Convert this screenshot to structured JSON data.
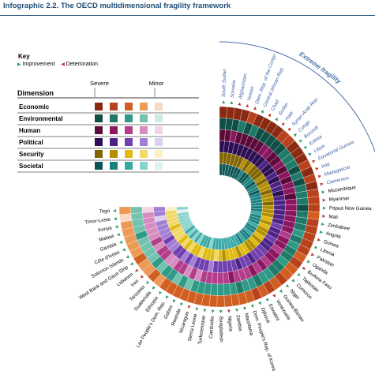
{
  "header": {
    "title": "Infographic 2.2. The OECD multidimensional fragility framework"
  },
  "key": {
    "title": "Key",
    "improvement": "Improvement",
    "deterioration": "Deterioration",
    "improvement_color": "#2e9e6b",
    "deterioration_color": "#c0392b"
  },
  "legend": {
    "dimension_header": "Dimension",
    "severe_label": "Severe",
    "minor_label": "Minor",
    "dimensions": [
      {
        "name": "Economic",
        "colors": [
          "#8b2a12",
          "#b8421c",
          "#d25f22",
          "#ec9a55",
          "#f9d9c1"
        ]
      },
      {
        "name": "Environmental",
        "colors": [
          "#0f4f46",
          "#1f7a69",
          "#2f9a86",
          "#73c2ae",
          "#cdebe2"
        ]
      },
      {
        "name": "Human",
        "colors": [
          "#5c0a3a",
          "#8a1760",
          "#b33d8a",
          "#d78cc0",
          "#f2d6e8"
        ]
      },
      {
        "name": "Political",
        "colors": [
          "#2c0f55",
          "#4d2386",
          "#7040b0",
          "#a27fd4",
          "#ddd0ef"
        ]
      },
      {
        "name": "Security",
        "colors": [
          "#806500",
          "#b38f00",
          "#e0ba10",
          "#f2d869",
          "#fbf1c2"
        ]
      },
      {
        "name": "Societal",
        "colors": [
          "#0d5454",
          "#1c8080",
          "#38a8a5",
          "#8ad3cd",
          "#dcf2ef"
        ]
      }
    ]
  },
  "extreme_fragility_label": "Extreme fragility",
  "chart_data": {
    "type": "radial heatmap",
    "title": "The OECD multidimensional fragility framework",
    "scale": "1 = severe, 5 = minor",
    "rings": [
      "Societal",
      "Security",
      "Political",
      "Human",
      "Environmental",
      "Economic"
    ],
    "countries": [
      {
        "name": "South Sudan",
        "extreme": true,
        "trend": "improvement",
        "scores": [
          1,
          1,
          1,
          1,
          1,
          1
        ]
      },
      {
        "name": "Somalia",
        "extreme": true,
        "trend": "improvement",
        "scores": [
          1,
          1,
          1,
          1,
          1,
          1
        ]
      },
      {
        "name": "Afghanistan",
        "extreme": true,
        "trend": "deterioration",
        "scores": [
          1,
          1,
          1,
          2,
          1,
          1
        ]
      },
      {
        "name": "Yemen",
        "extreme": true,
        "trend": "deterioration",
        "scores": [
          1,
          1,
          1,
          1,
          2,
          1
        ]
      },
      {
        "name": "Dem. Rep. of the Congo",
        "extreme": true,
        "trend": "deterioration",
        "scores": [
          1,
          1,
          1,
          1,
          1,
          2
        ]
      },
      {
        "name": "Central African Rep.",
        "extreme": true,
        "trend": "improvement",
        "scores": [
          1,
          1,
          1,
          1,
          2,
          1
        ]
      },
      {
        "name": "Chad",
        "extreme": true,
        "trend": "deterioration",
        "scores": [
          1,
          2,
          1,
          1,
          1,
          1
        ]
      },
      {
        "name": "Sudan",
        "extreme": true,
        "trend": "improvement",
        "scores": [
          2,
          1,
          1,
          1,
          1,
          1
        ]
      },
      {
        "name": "Haiti",
        "extreme": true,
        "trend": "deterioration",
        "scores": [
          1,
          2,
          1,
          2,
          1,
          1
        ]
      },
      {
        "name": "Syrian Arab Rep.",
        "extreme": true,
        "trend": "deterioration",
        "scores": [
          1,
          1,
          1,
          2,
          1,
          2
        ]
      },
      {
        "name": "Congo",
        "extreme": true,
        "trend": "improvement",
        "scores": [
          2,
          1,
          2,
          1,
          1,
          2
        ]
      },
      {
        "name": "Burundi",
        "extreme": true,
        "trend": "improvement",
        "scores": [
          2,
          1,
          1,
          1,
          2,
          1
        ]
      },
      {
        "name": "Eritrea",
        "extreme": true,
        "trend": "improvement",
        "scores": [
          1,
          2,
          1,
          2,
          2,
          1
        ]
      },
      {
        "name": "Libya",
        "extreme": true,
        "trend": "improvement",
        "scores": [
          2,
          1,
          2,
          1,
          2,
          1
        ]
      },
      {
        "name": "Equatorial Guinea",
        "extreme": true,
        "trend": "deterioration",
        "scores": [
          2,
          2,
          1,
          2,
          1,
          2
        ]
      },
      {
        "name": "Iraq",
        "extreme": true,
        "trend": "deterioration",
        "scores": [
          1,
          2,
          2,
          1,
          2,
          1
        ]
      },
      {
        "name": "Madagascar",
        "extreme": true,
        "trend": "deterioration",
        "scores": [
          2,
          1,
          2,
          2,
          1,
          2
        ]
      },
      {
        "name": "Cameroon",
        "extreme": true,
        "trend": "deterioration",
        "scores": [
          2,
          2,
          1,
          2,
          2,
          1
        ]
      },
      {
        "name": "Mozambique",
        "extreme": false,
        "trend": "improvement",
        "scores": [
          2,
          2,
          2,
          1,
          2,
          2
        ]
      },
      {
        "name": "Myanmar",
        "extreme": false,
        "trend": "deterioration",
        "scores": [
          2,
          1,
          2,
          2,
          2,
          2
        ]
      },
      {
        "name": "Papua New Guinea",
        "extreme": false,
        "trend": "improvement",
        "scores": [
          2,
          2,
          2,
          2,
          1,
          2
        ]
      },
      {
        "name": "Mali",
        "extreme": false,
        "trend": "deterioration",
        "scores": [
          2,
          2,
          2,
          2,
          2,
          3
        ]
      },
      {
        "name": "Zimbabwe",
        "extreme": false,
        "trend": "improvement",
        "scores": [
          3,
          2,
          2,
          2,
          2,
          2
        ]
      },
      {
        "name": "Angola",
        "extreme": false,
        "trend": "improvement",
        "scores": [
          2,
          3,
          2,
          2,
          2,
          2
        ]
      },
      {
        "name": "Guinea",
        "extreme": false,
        "trend": "deterioration",
        "scores": [
          2,
          2,
          3,
          2,
          3,
          2
        ]
      },
      {
        "name": "Liberia",
        "extreme": false,
        "trend": "improvement",
        "scores": [
          2,
          3,
          2,
          3,
          2,
          2
        ]
      },
      {
        "name": "Pakistan",
        "extreme": false,
        "trend": "deterioration",
        "scores": [
          3,
          2,
          2,
          2,
          3,
          2
        ]
      },
      {
        "name": "Uganda",
        "extreme": false,
        "trend": "improvement",
        "scores": [
          2,
          2,
          3,
          2,
          2,
          3
        ]
      },
      {
        "name": "Burkina Faso",
        "extreme": false,
        "trend": "deterioration",
        "scores": [
          2,
          3,
          2,
          3,
          2,
          2
        ]
      },
      {
        "name": "Tajikistan",
        "extreme": false,
        "trend": "improvement",
        "scores": [
          3,
          2,
          2,
          2,
          3,
          3
        ]
      },
      {
        "name": "Comoros",
        "extreme": false,
        "trend": "improvement",
        "scores": [
          2,
          3,
          3,
          2,
          2,
          3
        ]
      },
      {
        "name": "Niger",
        "extreme": false,
        "trend": "improvement",
        "scores": [
          2,
          2,
          3,
          3,
          2,
          2
        ]
      },
      {
        "name": "Guinea-Bissau",
        "extreme": false,
        "trend": "improvement",
        "scores": [
          3,
          2,
          3,
          2,
          3,
          3
        ]
      },
      {
        "name": "Venezuela",
        "extreme": false,
        "trend": "deterioration",
        "scores": [
          2,
          3,
          2,
          3,
          3,
          2
        ]
      },
      {
        "name": "Eswatini",
        "extreme": false,
        "trend": "improvement",
        "scores": [
          3,
          3,
          3,
          2,
          2,
          3
        ]
      },
      {
        "name": "Djibouti",
        "extreme": false,
        "trend": "improvement",
        "scores": [
          3,
          2,
          3,
          3,
          3,
          2
        ]
      },
      {
        "name": "Dem. People's Rep. of Korea",
        "extreme": false,
        "trend": "improvement",
        "scores": [
          3,
          3,
          2,
          3,
          3,
          3
        ]
      },
      {
        "name": "Mauritania",
        "extreme": false,
        "trend": "improvement",
        "scores": [
          3,
          3,
          3,
          3,
          2,
          3
        ]
      },
      {
        "name": "Zambia",
        "extreme": false,
        "trend": "improvement",
        "scores": [
          3,
          3,
          3,
          2,
          3,
          3
        ]
      },
      {
        "name": "Nigeria",
        "extreme": false,
        "trend": "deterioration",
        "scores": [
          3,
          2,
          3,
          3,
          3,
          3
        ]
      },
      {
        "name": "Bangladesh",
        "extreme": false,
        "trend": "improvement",
        "scores": [
          3,
          3,
          3,
          3,
          3,
          3
        ]
      },
      {
        "name": "Cambodia",
        "extreme": false,
        "trend": "improvement",
        "scores": [
          3,
          4,
          3,
          3,
          3,
          3
        ]
      },
      {
        "name": "Turkmenistan",
        "extreme": false,
        "trend": "improvement",
        "scores": [
          3,
          3,
          4,
          3,
          3,
          3
        ]
      },
      {
        "name": "Sierra Leone",
        "extreme": false,
        "trend": "improvement",
        "scores": [
          4,
          3,
          3,
          3,
          3,
          3
        ]
      },
      {
        "name": "Nicaragua",
        "extreme": false,
        "trend": "deterioration",
        "scores": [
          3,
          3,
          3,
          4,
          3,
          3
        ]
      },
      {
        "name": "Rwanda",
        "extreme": false,
        "trend": "improvement",
        "scores": [
          3,
          4,
          3,
          3,
          4,
          3
        ]
      },
      {
        "name": "Gabon",
        "extreme": false,
        "trend": "improvement",
        "scores": [
          3,
          3,
          4,
          4,
          3,
          3
        ]
      },
      {
        "name": "Lao People's Dem. Rep.",
        "extreme": false,
        "trend": "improvement",
        "scores": [
          4,
          3,
          3,
          3,
          4,
          3
        ]
      },
      {
        "name": "Ethiopia",
        "extreme": false,
        "trend": "improvement",
        "scores": [
          3,
          4,
          4,
          3,
          3,
          3
        ]
      },
      {
        "name": "Guatemala",
        "extreme": false,
        "trend": "improvement",
        "scores": [
          4,
          3,
          3,
          4,
          3,
          4
        ]
      },
      {
        "name": "Tanzania",
        "extreme": false,
        "trend": "improvement",
        "scores": [
          3,
          4,
          3,
          4,
          4,
          3
        ]
      },
      {
        "name": "Iran",
        "extreme": false,
        "trend": "deterioration",
        "scores": [
          4,
          3,
          4,
          3,
          3,
          4
        ]
      },
      {
        "name": "Lebanon",
        "extreme": false,
        "trend": "deterioration",
        "scores": [
          3,
          4,
          4,
          3,
          4,
          4
        ]
      },
      {
        "name": "West Bank and Gaza Strip",
        "extreme": false,
        "trend": "improvement",
        "scores": [
          4,
          4,
          3,
          4,
          4,
          3
        ]
      },
      {
        "name": "Solomon Islands",
        "extreme": false,
        "trend": "improvement",
        "scores": [
          4,
          4,
          4,
          3,
          4,
          4
        ]
      },
      {
        "name": "Côte d'Ivoire",
        "extreme": false,
        "trend": "improvement",
        "scores": [
          4,
          3,
          4,
          4,
          4,
          4
        ]
      },
      {
        "name": "Gambia",
        "extreme": false,
        "trend": "improvement",
        "scores": [
          4,
          4,
          4,
          4,
          3,
          4
        ]
      },
      {
        "name": "Malawi",
        "extreme": false,
        "trend": "improvement",
        "scores": [
          4,
          4,
          4,
          4,
          4,
          4
        ]
      },
      {
        "name": "Kenya",
        "extreme": false,
        "trend": "improvement",
        "scores": [
          4,
          4,
          5,
          4,
          4,
          4
        ]
      },
      {
        "name": "Timor-Leste",
        "extreme": false,
        "trend": "improvement",
        "scores": [
          5,
          4,
          4,
          4,
          4,
          5
        ]
      },
      {
        "name": "Togo",
        "extreme": false,
        "trend": "improvement",
        "scores": [
          4,
          5,
          4,
          5,
          4,
          4
        ]
      }
    ]
  }
}
